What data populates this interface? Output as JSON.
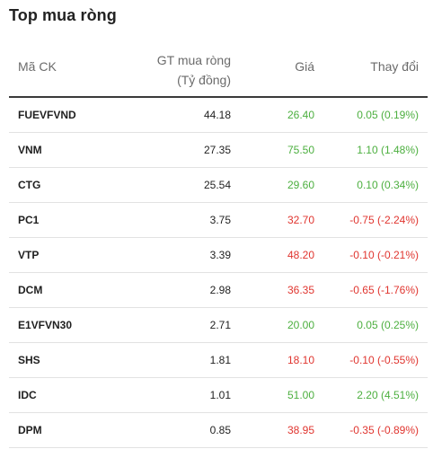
{
  "title": "Top mua ròng",
  "columns": {
    "code": "Mã CK",
    "net_value_line1": "GT mua ròng",
    "net_value_line2": "(Tỷ đồng)",
    "price": "Giá",
    "change": "Thay đổi"
  },
  "colors": {
    "up": "#4caf3f",
    "down": "#e0352f"
  },
  "rows": [
    {
      "code": "FUEVFVND",
      "net_value": "44.18",
      "price": "26.40",
      "change": "0.05 (0.19%)",
      "direction": "up"
    },
    {
      "code": "VNM",
      "net_value": "27.35",
      "price": "75.50",
      "change": "1.10 (1.48%)",
      "direction": "up"
    },
    {
      "code": "CTG",
      "net_value": "25.54",
      "price": "29.60",
      "change": "0.10 (0.34%)",
      "direction": "up"
    },
    {
      "code": "PC1",
      "net_value": "3.75",
      "price": "32.70",
      "change": "-0.75 (-2.24%)",
      "direction": "down"
    },
    {
      "code": "VTP",
      "net_value": "3.39",
      "price": "48.20",
      "change": "-0.10 (-0.21%)",
      "direction": "down"
    },
    {
      "code": "DCM",
      "net_value": "2.98",
      "price": "36.35",
      "change": "-0.65 (-1.76%)",
      "direction": "down"
    },
    {
      "code": "E1VFVN30",
      "net_value": "2.71",
      "price": "20.00",
      "change": "0.05 (0.25%)",
      "direction": "up"
    },
    {
      "code": "SHS",
      "net_value": "1.81",
      "price": "18.10",
      "change": "-0.10 (-0.55%)",
      "direction": "down"
    },
    {
      "code": "IDC",
      "net_value": "1.01",
      "price": "51.00",
      "change": "2.20 (4.51%)",
      "direction": "up"
    },
    {
      "code": "DPM",
      "net_value": "0.85",
      "price": "38.95",
      "change": "-0.35 (-0.89%)",
      "direction": "down"
    }
  ]
}
